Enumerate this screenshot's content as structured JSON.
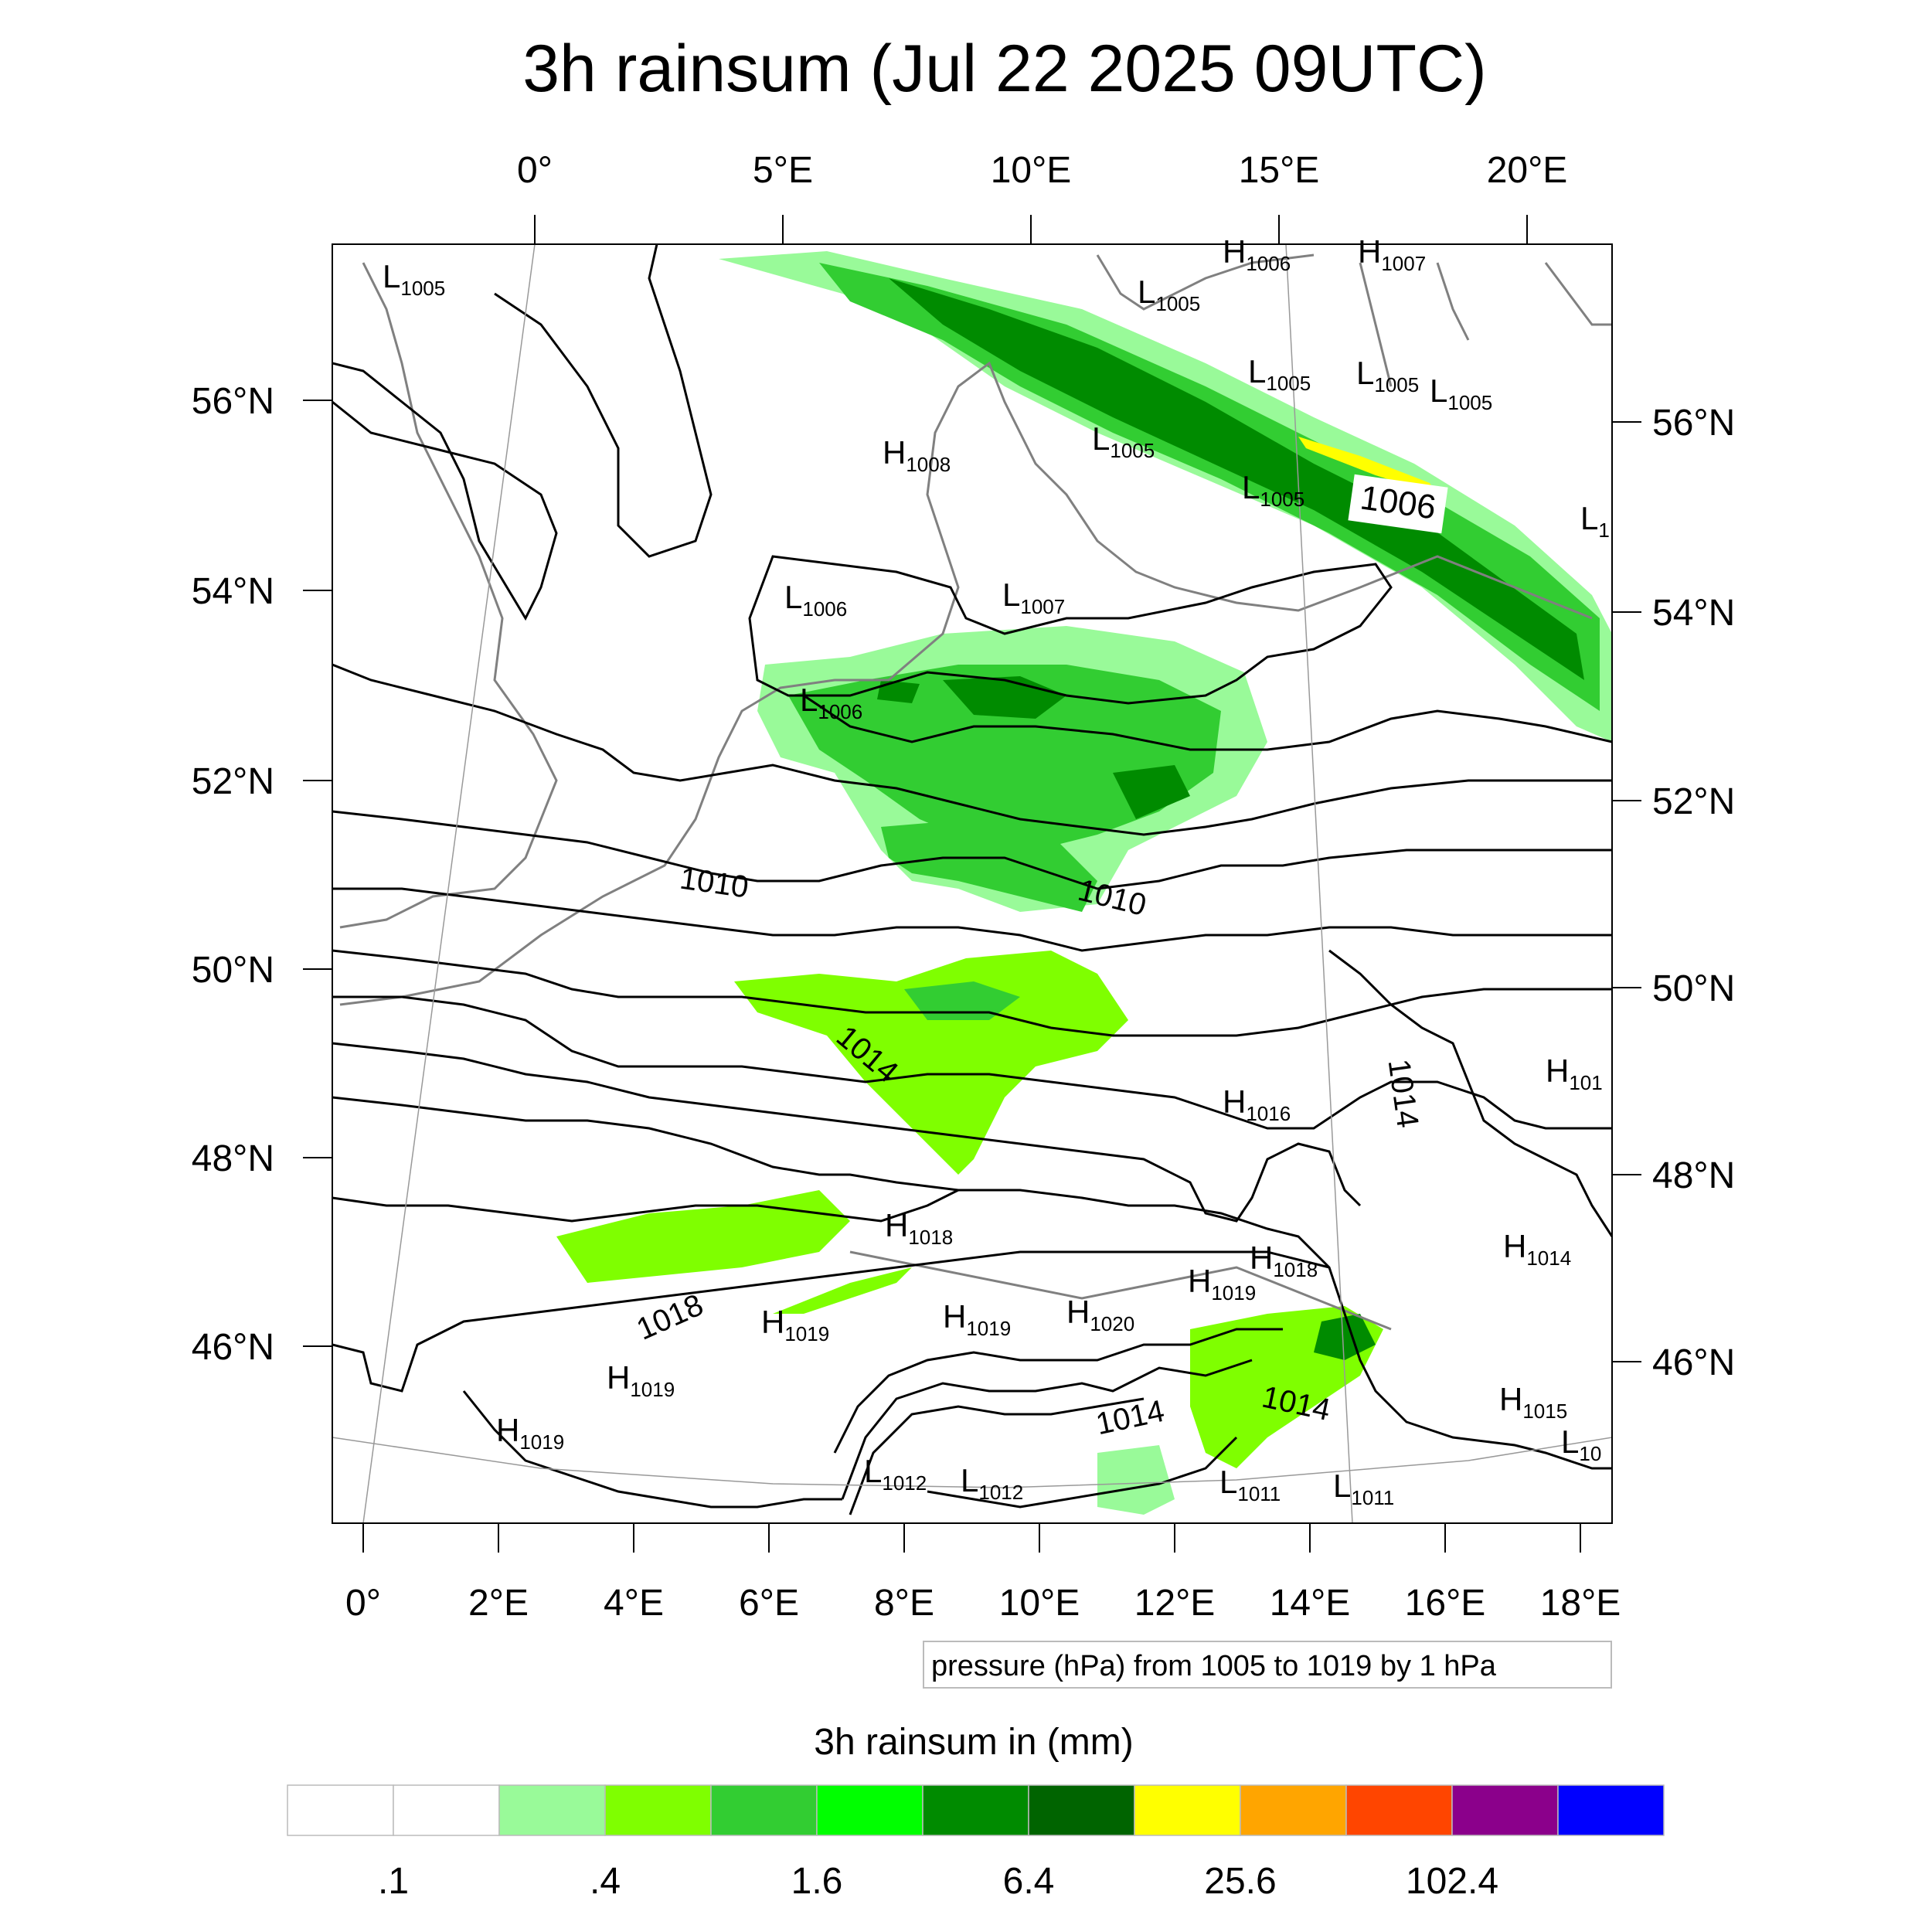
{
  "title": "3h rainsum (Jul 22 2025 09UTC)",
  "top_lon_labels": [
    "0°",
    "5°E",
    "10°E",
    "15°E",
    "20°E"
  ],
  "bottom_lon_labels": [
    "0°",
    "2°E",
    "4°E",
    "6°E",
    "8°E",
    "10°E",
    "12°E",
    "14°E",
    "16°E",
    "18°E"
  ],
  "left_lat_labels": [
    "56°N",
    "54°N",
    "52°N",
    "50°N",
    "48°N",
    "46°N"
  ],
  "right_lat_labels": [
    "56°N",
    "54°N",
    "52°N",
    "50°N",
    "48°N",
    "46°N"
  ],
  "isobar_labels": [
    "1006",
    "1010",
    "1010",
    "1014",
    "1014",
    "1018",
    "1014",
    "1014"
  ],
  "pressure_centers": [
    {
      "type": "L",
      "value": "1005"
    },
    {
      "type": "H",
      "value": "1006"
    },
    {
      "type": "H",
      "value": "1007"
    },
    {
      "type": "L",
      "value": "1005"
    },
    {
      "type": "L",
      "value": "1005"
    },
    {
      "type": "L",
      "value": "1005"
    },
    {
      "type": "L",
      "value": "1005"
    },
    {
      "type": "H",
      "value": "1008"
    },
    {
      "type": "L",
      "value": "1005"
    },
    {
      "type": "L",
      "value": "1005"
    },
    {
      "type": "L",
      "value": "1"
    },
    {
      "type": "L",
      "value": "1006"
    },
    {
      "type": "L",
      "value": "1007"
    },
    {
      "type": "L",
      "value": "1006"
    },
    {
      "type": "H",
      "value": "1016"
    },
    {
      "type": "H",
      "value": "101"
    },
    {
      "type": "H",
      "value": "1018"
    },
    {
      "type": "H",
      "value": "1018"
    },
    {
      "type": "H",
      "value": "1014"
    },
    {
      "type": "H",
      "value": "1019"
    },
    {
      "type": "H",
      "value": "1019"
    },
    {
      "type": "H",
      "value": "1020"
    },
    {
      "type": "H",
      "value": "1019"
    },
    {
      "type": "H",
      "value": "1019"
    },
    {
      "type": "H",
      "value": "1019"
    },
    {
      "type": "H",
      "value": "1015"
    },
    {
      "type": "L",
      "value": "10"
    },
    {
      "type": "L",
      "value": "1012"
    },
    {
      "type": "L",
      "value": "1012"
    },
    {
      "type": "L",
      "value": "1011"
    },
    {
      "type": "L",
      "value": "1011"
    }
  ],
  "contour_info": "pressure (hPa) from 1005 to 1019 by 1 hPa",
  "colorbar": {
    "title": "3h rainsum in (mm)",
    "colors": [
      "#ffffff",
      "#ffffff",
      "#99fa99",
      "#7fff00",
      "#32cd32",
      "#00ff00",
      "#008b00",
      "#006400",
      "#ffff00",
      "#ffa500",
      "#ff4500",
      "#8b008b",
      "#0000ff"
    ],
    "labels": [
      ".1",
      ".4",
      "1.6",
      "6.4",
      "25.6",
      "102.4"
    ]
  }
}
